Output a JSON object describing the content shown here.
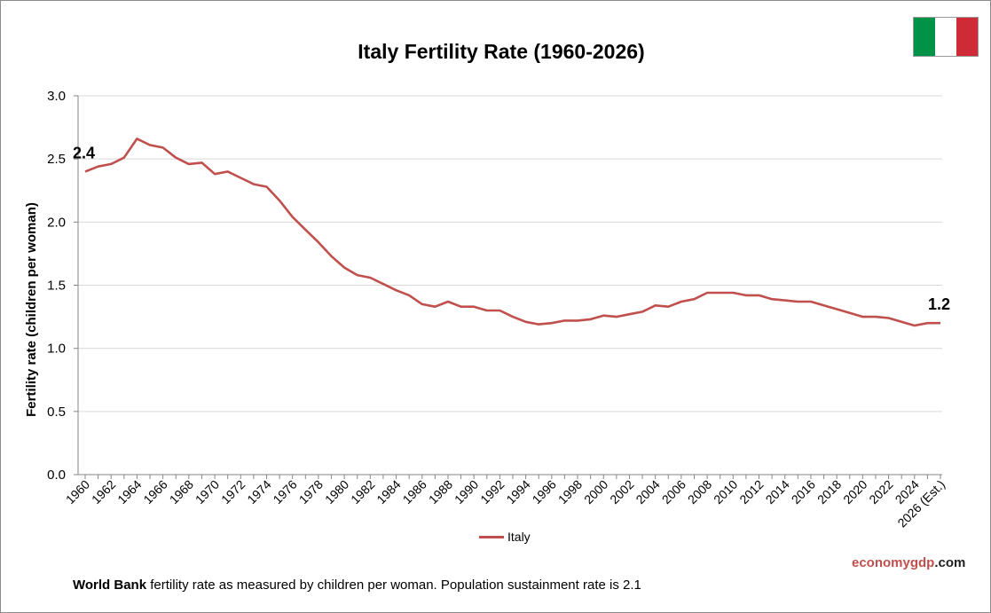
{
  "colors": {
    "line": "#C0504D",
    "grid": "#D9D9D9",
    "axis": "#868686",
    "flag_green": "#009246",
    "flag_white": "#FFFFFF",
    "flag_red": "#CE2B37",
    "watermark_accent": "#C0504D",
    "watermark_dark": "#222222"
  },
  "flag": {
    "icon": "italy-flag-icon"
  },
  "watermark": {
    "part1": "economy",
    "part2": "gdp",
    "part3": ".com"
  },
  "footnote": {
    "bold": "World Bank",
    "text": " fertility rate as measured by children per woman.  Population  sustainment  rate is 2.1"
  },
  "chart_data": {
    "type": "line",
    "title": "Italy Fertility Rate (1960-2026)",
    "xlabel": "",
    "ylabel": "Fertility rate (children per woman)",
    "ylim": [
      0,
      3
    ],
    "yticks": [
      "0.0",
      "0.5",
      "1.0",
      "1.5",
      "2.0",
      "2.5",
      "3.0"
    ],
    "grid": true,
    "legend_position": "bottom",
    "x": [
      "1960",
      "1961",
      "1962",
      "1963",
      "1964",
      "1965",
      "1966",
      "1967",
      "1968",
      "1969",
      "1970",
      "1971",
      "1972",
      "1973",
      "1974",
      "1975",
      "1976",
      "1977",
      "1978",
      "1979",
      "1980",
      "1981",
      "1982",
      "1983",
      "1984",
      "1985",
      "1986",
      "1987",
      "1988",
      "1989",
      "1990",
      "1991",
      "1992",
      "1993",
      "1994",
      "1995",
      "1996",
      "1997",
      "1998",
      "1999",
      "2000",
      "2001",
      "2002",
      "2003",
      "2004",
      "2005",
      "2006",
      "2007",
      "2008",
      "2009",
      "2010",
      "2011",
      "2012",
      "2013",
      "2014",
      "2015",
      "2016",
      "2017",
      "2018",
      "2019",
      "2020",
      "2021",
      "2022",
      "2023",
      "2024",
      "2025",
      "2026 (Est.)"
    ],
    "xtick_labels": [
      "1960",
      "1962",
      "1964",
      "1966",
      "1968",
      "1970",
      "1972",
      "1974",
      "1976",
      "1978",
      "1980",
      "1982",
      "1984",
      "1986",
      "1988",
      "1990",
      "1992",
      "1994",
      "1996",
      "1998",
      "2000",
      "2002",
      "2004",
      "2006",
      "2008",
      "2010",
      "2012",
      "2014",
      "2016",
      "2018",
      "2020",
      "2022",
      "2024",
      "2026 (Est.)"
    ],
    "series": [
      {
        "name": "Italy",
        "values": [
          2.4,
          2.44,
          2.46,
          2.51,
          2.66,
          2.61,
          2.59,
          2.51,
          2.46,
          2.47,
          2.38,
          2.4,
          2.35,
          2.3,
          2.28,
          2.17,
          2.04,
          1.94,
          1.84,
          1.73,
          1.64,
          1.58,
          1.56,
          1.51,
          1.46,
          1.42,
          1.35,
          1.33,
          1.37,
          1.33,
          1.33,
          1.3,
          1.3,
          1.25,
          1.21,
          1.19,
          1.2,
          1.22,
          1.22,
          1.23,
          1.26,
          1.25,
          1.27,
          1.29,
          1.34,
          1.33,
          1.37,
          1.39,
          1.44,
          1.44,
          1.44,
          1.42,
          1.42,
          1.39,
          1.38,
          1.37,
          1.37,
          1.34,
          1.31,
          1.28,
          1.25,
          1.25,
          1.24,
          1.21,
          1.18,
          1.2,
          1.2
        ]
      }
    ],
    "annotations": [
      {
        "label": "2.4",
        "at_index": 0
      },
      {
        "label": "1.2",
        "at_index": 66
      }
    ]
  }
}
